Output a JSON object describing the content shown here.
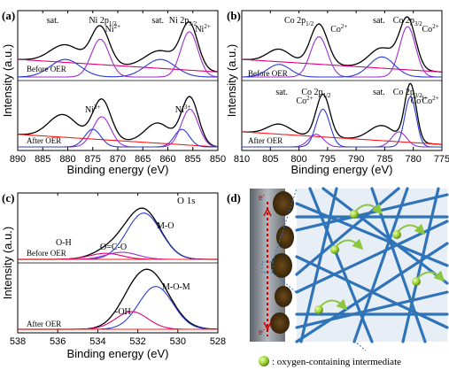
{
  "chart_data": [
    {
      "panel": "(a)",
      "type": "line",
      "xlabel": "Binding energy (eV)",
      "ylabel": "Intensity (a.u.)",
      "xlim": [
        890,
        850
      ],
      "x_ticks": [
        "890",
        "885",
        "880",
        "875",
        "870",
        "865",
        "860",
        "855",
        "850"
      ],
      "conditions": [
        "Before OER",
        "After OER"
      ],
      "peak_labels": [
        {
          "text": "sat.",
          "x": 883
        },
        {
          "text": "Ni 2p",
          "sub": "1/2",
          "x": 873
        },
        {
          "text": "Ni",
          "sup": "2+",
          "x": 871
        },
        {
          "text": "sat.",
          "x": 862
        },
        {
          "text": "Ni 2p",
          "sub": "3/2",
          "x": 857
        },
        {
          "text": "Ni",
          "sup": "2+",
          "x": 853
        }
      ],
      "after_extra_labels": [
        {
          "text": "Ni",
          "sup": "3+",
          "x": 875
        },
        {
          "text": "Ni",
          "sup": "3+",
          "x": 857
        }
      ],
      "series_before": [
        {
          "color": "#000000",
          "peaks": [
            {
              "x": 880.5,
              "w": 3.0,
              "h": 0.35
            },
            {
              "x": 873.5,
              "w": 1.8,
              "h": 0.75
            },
            {
              "x": 861.5,
              "w": 3.0,
              "h": 0.35
            },
            {
              "x": 855.7,
              "w": 1.7,
              "h": 0.9
            }
          ],
          "baseline": [
            0.35,
            0.1
          ]
        },
        {
          "color": "#e0007a",
          "baseline": [
            0.35,
            0.1
          ]
        },
        {
          "color": "#9d2fd0",
          "peaks": [
            {
              "x": 873.5,
              "w": 1.8,
              "h": 0.75
            },
            {
              "x": 855.7,
              "w": 1.7,
              "h": 0.9
            }
          ]
        },
        {
          "color": "#2a3bd6",
          "peaks": [
            {
              "x": 880.5,
              "w": 3.0,
              "h": 0.35
            },
            {
              "x": 861.5,
              "w": 3.0,
              "h": 0.35
            }
          ]
        }
      ],
      "series_after": [
        {
          "color": "#000000",
          "peaks": [
            {
              "x": 881,
              "w": 2.8,
              "h": 0.45
            },
            {
              "x": 873.2,
              "w": 1.8,
              "h": 0.8
            },
            {
              "x": 862,
              "w": 2.5,
              "h": 0.4
            },
            {
              "x": 855.6,
              "w": 1.7,
              "h": 0.95
            }
          ],
          "baseline": [
            0.25,
            0.0
          ]
        },
        {
          "color": "#ff1a1a",
          "baseline": [
            0.25,
            0.0
          ]
        },
        {
          "color": "#9d2fd0",
          "peaks": [
            {
              "x": 873.2,
              "w": 1.8,
              "h": 0.6
            },
            {
              "x": 855.6,
              "w": 1.7,
              "h": 0.75
            }
          ]
        },
        {
          "color": "#2a3bd6",
          "peaks": [
            {
              "x": 875.0,
              "w": 1.6,
              "h": 0.35
            },
            {
              "x": 857.2,
              "w": 1.5,
              "h": 0.35
            }
          ]
        }
      ]
    },
    {
      "panel": "(b)",
      "type": "line",
      "xlabel": "Binding energy (eV)",
      "ylabel": "Intensity (a.u.)",
      "xlim": [
        810,
        775
      ],
      "x_ticks": [
        "810",
        "805",
        "800",
        "795",
        "790",
        "785",
        "780",
        "775"
      ],
      "conditions": [
        "Before OER",
        "After OER"
      ],
      "peak_labels": [
        {
          "text": "Co 2p",
          "sub": "1/2",
          "x": 800
        },
        {
          "text": "Co",
          "sup": "2+",
          "x": 793
        },
        {
          "text": "sat.",
          "x": 786
        },
        {
          "text": "Co 2p",
          "sub": "3/2",
          "x": 781
        },
        {
          "text": "Co",
          "sup": "2+",
          "x": 777
        }
      ],
      "after_labels": [
        {
          "text": "Co 2p",
          "sub": "1/2",
          "x": 797
        },
        {
          "text": "Co 2p",
          "sub": "3/2",
          "x": 781
        },
        {
          "text": "sat.",
          "x": 803
        },
        {
          "text": "Co",
          "sup": "2+",
          "x": 799
        },
        {
          "text": "Co",
          "sup": "2+",
          "x": 777
        },
        {
          "text": "sat.",
          "x": 786
        },
        {
          "text": "Co",
          "sup": "3+",
          "x": 779
        }
      ],
      "series_before": [
        {
          "color": "#000000",
          "peaks": [
            {
              "x": 803.5,
              "w": 2.0,
              "h": 0.25
            },
            {
              "x": 796.5,
              "w": 1.5,
              "h": 0.8
            },
            {
              "x": 785.5,
              "w": 2.2,
              "h": 0.4
            },
            {
              "x": 781,
              "w": 1.4,
              "h": 1.0
            }
          ],
          "baseline": [
            0.35,
            0.1
          ]
        },
        {
          "color": "#e0007a",
          "baseline": [
            0.35,
            0.1
          ]
        },
        {
          "color": "#9d2fd0",
          "peaks": [
            {
              "x": 796.5,
              "w": 1.5,
              "h": 0.8
            },
            {
              "x": 781,
              "w": 1.4,
              "h": 1.0
            }
          ]
        },
        {
          "color": "#2a3bd6",
          "peaks": [
            {
              "x": 803.5,
              "w": 2.0,
              "h": 0.25
            },
            {
              "x": 785.5,
              "w": 2.2,
              "h": 0.4
            }
          ]
        }
      ],
      "series_after": [
        {
          "color": "#000000",
          "peaks": [
            {
              "x": 803.5,
              "w": 2.0,
              "h": 0.2
            },
            {
              "x": 795.8,
              "w": 1.2,
              "h": 0.85
            },
            {
              "x": 785.5,
              "w": 2.2,
              "h": 0.3
            },
            {
              "x": 780.5,
              "w": 1.0,
              "h": 1.15
            }
          ],
          "baseline": [
            0.3,
            0.05
          ]
        },
        {
          "color": "#ff1a1a",
          "baseline": [
            0.3,
            0.05
          ]
        },
        {
          "color": "#9d2fd0",
          "peaks": [
            {
              "x": 797.0,
              "w": 1.3,
              "h": 0.25
            },
            {
              "x": 782.5,
              "w": 1.3,
              "h": 0.3
            }
          ]
        },
        {
          "color": "#2a3bd6",
          "peaks": [
            {
              "x": 795.8,
              "w": 1.2,
              "h": 0.75
            },
            {
              "x": 780.5,
              "w": 1.0,
              "h": 1.0
            }
          ]
        }
      ]
    },
    {
      "panel": "(c)",
      "type": "line",
      "title": "O 1s",
      "xlabel": "Binding energy (eV)",
      "ylabel": "Intensity (a.u.)",
      "xlim": [
        538,
        528
      ],
      "x_ticks": [
        "538",
        "536",
        "534",
        "532",
        "530",
        "528"
      ],
      "conditions": [
        "Before OER",
        "After OER"
      ],
      "before_labels": [
        "M-O",
        "O-H",
        "O=C-O"
      ],
      "after_labels": [
        "M-O-M",
        "-OH"
      ],
      "series_before": [
        {
          "color": "#000000",
          "peaks": [
            {
              "x": 531.7,
              "w": 0.85,
              "h": 0.95
            },
            {
              "x": 533.6,
              "w": 0.8,
              "h": 0.12
            },
            {
              "x": 532.8,
              "w": 0.8,
              "h": 0.14
            }
          ],
          "baseline": [
            0.0,
            0.0
          ]
        },
        {
          "color": "#2a3bd6",
          "peaks": [
            {
              "x": 531.7,
              "w": 0.85,
              "h": 0.92
            }
          ]
        },
        {
          "color": "#e0007a",
          "peaks": [
            {
              "x": 533.6,
              "w": 0.8,
              "h": 0.12
            }
          ]
        },
        {
          "color": "#9d2fd0",
          "peaks": [
            {
              "x": 532.8,
              "w": 0.8,
              "h": 0.14
            }
          ]
        },
        {
          "color": "#ff1a1a",
          "baseline": [
            0.0,
            0.0
          ]
        }
      ],
      "series_after": [
        {
          "color": "#000000",
          "peaks": [
            {
              "x": 531.3,
              "w": 0.95,
              "h": 1.0
            },
            {
              "x": 532.3,
              "w": 0.8,
              "h": 0.35
            }
          ],
          "baseline": [
            0.0,
            0.0
          ]
        },
        {
          "color": "#2a3bd6",
          "peaks": [
            {
              "x": 531.1,
              "w": 0.85,
              "h": 0.85
            }
          ]
        },
        {
          "color": "#e0007a",
          "peaks": [
            {
              "x": 532.3,
              "w": 0.8,
              "h": 0.35
            }
          ]
        },
        {
          "color": "#ff1a1a",
          "baseline": [
            0.0,
            0.0
          ]
        }
      ]
    }
  ],
  "panel_d": {
    "label": "(d)",
    "electron_label_top": "e",
    "electron_label_bottom": "e",
    "electron_sup": "-",
    "caption": ": oxygen-containing intermediate",
    "colors": {
      "rod": "#2f74b8",
      "mesh_bg": "#e8eef6",
      "sphere": "#9acd32",
      "arrow": "#8cc63f",
      "electrode": "#8a8f96",
      "dots": "#cc0000"
    }
  }
}
